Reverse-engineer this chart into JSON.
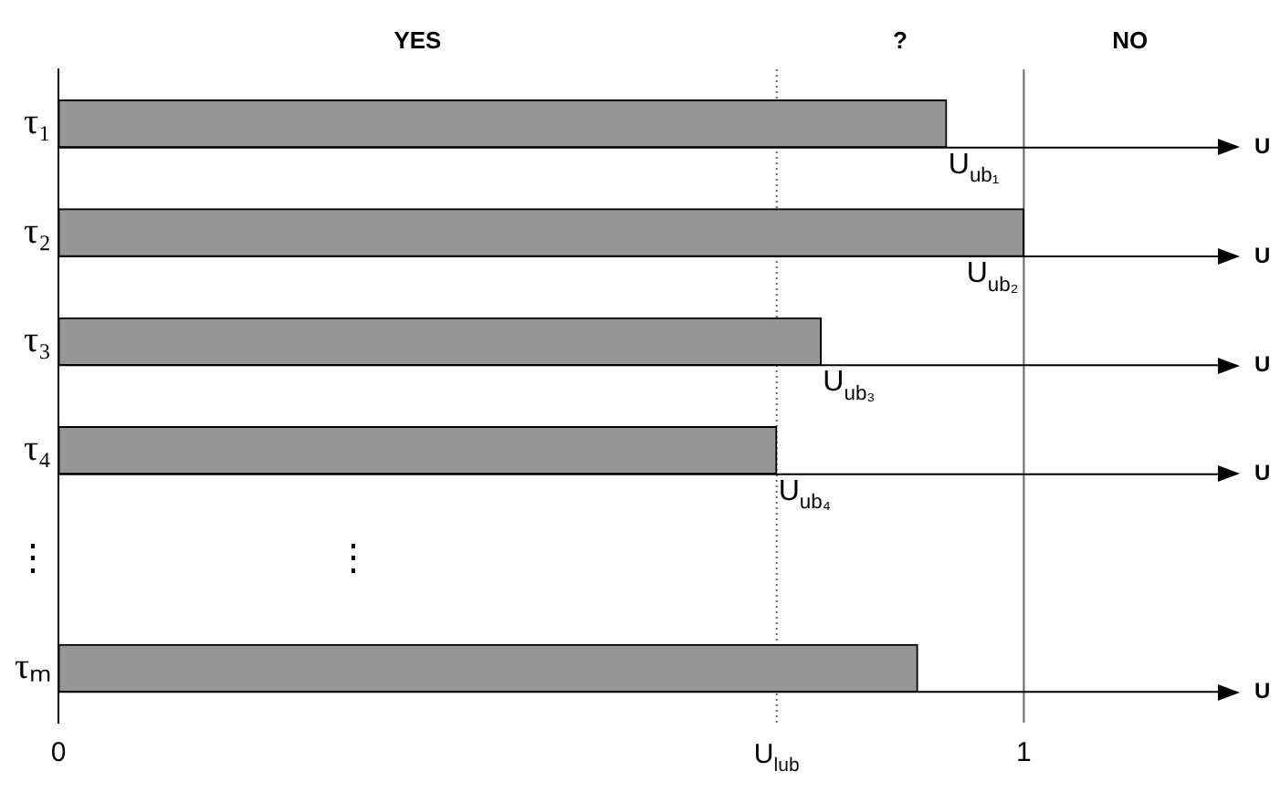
{
  "chart_data": {
    "type": "bar",
    "orientation": "horizontal",
    "xlabel": "U",
    "categories": [
      "τ₁",
      "τ₂",
      "τ₃",
      "τ₄",
      "⋮",
      "τₘ"
    ],
    "values": [
      0.92,
      1.0,
      0.79,
      0.744,
      null,
      0.89
    ],
    "value_labels": [
      "U$_{ub₁}$",
      "U$_{ub₂}$",
      "U$_{ub₃}$",
      "U$_{ub₄}$",
      null,
      null
    ],
    "color": "#969696",
    "xlim": [
      0,
      1.22
    ],
    "xticks": [
      0,
      1
    ],
    "ref_lines": [
      {
        "axis": "x",
        "value": 0.744,
        "label": "U$_{lub}$",
        "line_style": "dotted",
        "color": "#666666"
      },
      {
        "axis": "x",
        "value": 1,
        "label": null,
        "line_style": "solid",
        "color": "#666666"
      }
    ],
    "annotations": [
      "YES",
      "?",
      "NO",
      "⋮"
    ],
    "grid": false,
    "legend": false
  }
}
